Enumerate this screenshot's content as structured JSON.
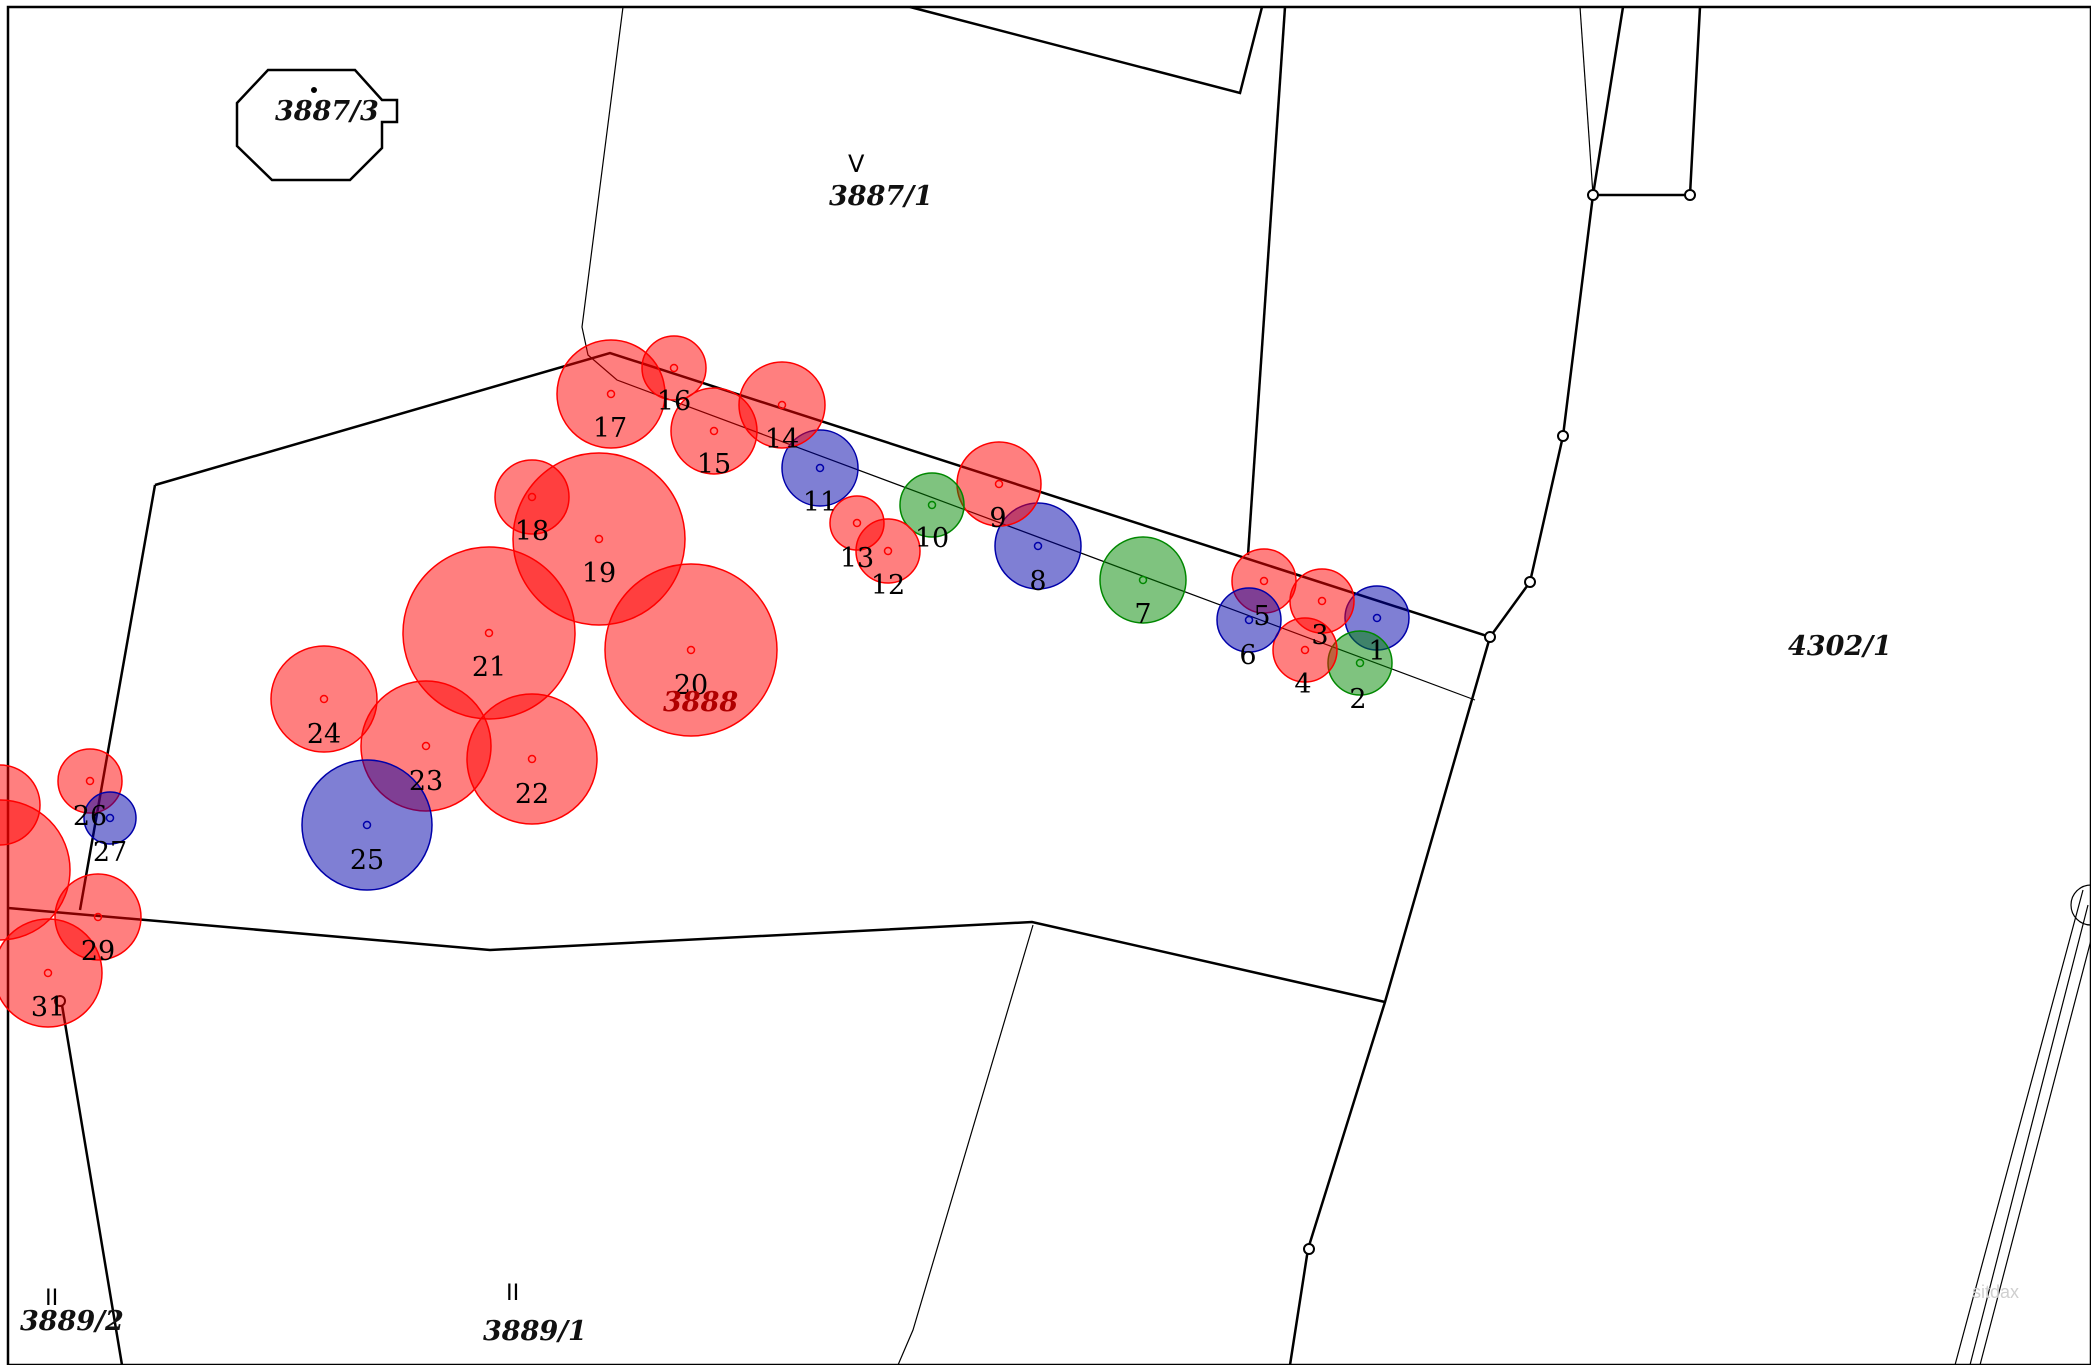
{
  "colors": {
    "red": "#ff0000",
    "blue": "#0000aa",
    "green": "#008800"
  },
  "parcel_labels": {
    "p3887_3": "3887/3",
    "p3887_1": "3887/1",
    "p3888": "3888",
    "p4302_1": "4302/1",
    "p3889_2": "3889/2",
    "p3889_1": "3889/1"
  },
  "symbols": {
    "garden_mark": "ᐯ",
    "meadow_mark_1": "II",
    "meadow_mark_2": "II"
  },
  "watermark": "sitdax",
  "trees": [
    {
      "label": "1",
      "status": "blue"
    },
    {
      "label": "2",
      "status": "green"
    },
    {
      "label": "3",
      "status": "red"
    },
    {
      "label": "4",
      "status": "red"
    },
    {
      "label": "5",
      "status": "red"
    },
    {
      "label": "6",
      "status": "blue"
    },
    {
      "label": "7",
      "status": "green"
    },
    {
      "label": "8",
      "status": "blue"
    },
    {
      "label": "9",
      "status": "red"
    },
    {
      "label": "10",
      "status": "green"
    },
    {
      "label": "11",
      "status": "blue"
    },
    {
      "label": "12",
      "status": "red"
    },
    {
      "label": "13",
      "status": "red"
    },
    {
      "label": "14",
      "status": "red"
    },
    {
      "label": "15",
      "status": "red"
    },
    {
      "label": "16",
      "status": "red"
    },
    {
      "label": "17",
      "status": "red"
    },
    {
      "label": "18",
      "status": "red"
    },
    {
      "label": "19",
      "status": "red"
    },
    {
      "label": "20",
      "status": "red"
    },
    {
      "label": "21",
      "status": "red"
    },
    {
      "label": "22",
      "status": "red"
    },
    {
      "label": "23",
      "status": "red"
    },
    {
      "label": "24",
      "status": "red"
    },
    {
      "label": "25",
      "status": "blue"
    },
    {
      "label": "26",
      "status": "red"
    },
    {
      "label": "27",
      "status": "blue"
    },
    {
      "label": "29",
      "status": "red"
    },
    {
      "label": "31",
      "status": "red"
    }
  ]
}
